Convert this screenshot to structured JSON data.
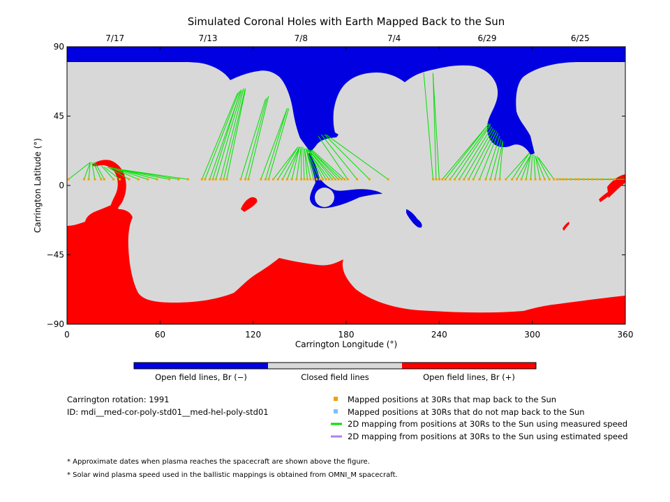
{
  "chart_data": {
    "type": "map",
    "title": "Simulated Coronal Holes with Earth Mapped Back to the Sun",
    "xlabel": "Carrington Longitude (°)",
    "ylabel": "Carrington Latitude (°)",
    "xlim": [
      0,
      360
    ],
    "ylim": [
      -90,
      90
    ],
    "x_ticks": [
      "0",
      "60",
      "120",
      "180",
      "240",
      "300",
      "360"
    ],
    "y_ticks": [
      "90",
      "45",
      "0",
      "−45",
      "−90"
    ],
    "top_dates": [
      {
        "lon": 30,
        "label": "7/17"
      },
      {
        "lon": 90,
        "label": "7/13"
      },
      {
        "lon": 150,
        "label": "7/8"
      },
      {
        "lon": 210,
        "label": "7/4"
      },
      {
        "lon": 270,
        "label": "6/29"
      },
      {
        "lon": 330,
        "label": "6/25"
      }
    ],
    "colorbar": [
      {
        "label": "Open field lines, Br (−)",
        "color": "#0000e0"
      },
      {
        "label": "Closed field lines",
        "color": "#d8d8d8"
      },
      {
        "label": "Open field lines, Br (+)",
        "color": "#ff0000"
      }
    ],
    "colors": {
      "open_negative": "#0000e0",
      "closed": "#d8d8d8",
      "open_positive": "#ff0000",
      "mapped_point": "#f0a000",
      "unmapped_point": "#80c0f0",
      "measured_line": "#00e000",
      "estimated_line": "#b080f0"
    },
    "mapping_lines": [
      {
        "from": [
          1,
          4
        ],
        "to": [
          15,
          15
        ]
      },
      {
        "from": [
          11,
          4
        ],
        "to": [
          15,
          15
        ]
      },
      {
        "from": [
          14,
          4
        ],
        "to": [
          15,
          15
        ]
      },
      {
        "from": [
          18,
          4
        ],
        "to": [
          16,
          15
        ]
      },
      {
        "from": [
          22,
          4
        ],
        "to": [
          17,
          15
        ]
      },
      {
        "from": [
          24,
          4
        ],
        "to": [
          18,
          15
        ]
      },
      {
        "from": [
          30,
          4
        ],
        "to": [
          22,
          13
        ]
      },
      {
        "from": [
          34,
          4
        ],
        "to": [
          24,
          12
        ]
      },
      {
        "from": [
          40,
          4
        ],
        "to": [
          26,
          12
        ]
      },
      {
        "from": [
          46,
          4
        ],
        "to": [
          27,
          12
        ]
      },
      {
        "from": [
          52,
          4
        ],
        "to": [
          27,
          12
        ]
      },
      {
        "from": [
          58,
          4
        ],
        "to": [
          27,
          12
        ]
      },
      {
        "from": [
          66,
          4
        ],
        "to": [
          29,
          11
        ]
      },
      {
        "from": [
          72,
          4
        ],
        "to": [
          30,
          11
        ]
      },
      {
        "from": [
          78,
          4
        ],
        "to": [
          30,
          11
        ]
      },
      {
        "from": [
          87,
          4
        ],
        "to": [
          110,
          60
        ]
      },
      {
        "from": [
          89,
          4
        ],
        "to": [
          111,
          61
        ]
      },
      {
        "from": [
          92,
          4
        ],
        "to": [
          112,
          61
        ]
      },
      {
        "from": [
          94,
          4
        ],
        "to": [
          112,
          62
        ]
      },
      {
        "from": [
          96,
          4
        ],
        "to": [
          113,
          62
        ]
      },
      {
        "from": [
          99,
          4
        ],
        "to": [
          114,
          63
        ]
      },
      {
        "from": [
          101,
          4
        ],
        "to": [
          115,
          63
        ]
      },
      {
        "from": [
          103,
          4
        ],
        "to": [
          115,
          62
        ]
      },
      {
        "from": [
          112,
          4
        ],
        "to": [
          128,
          56
        ]
      },
      {
        "from": [
          115,
          4
        ],
        "to": [
          129,
          57
        ]
      },
      {
        "from": [
          117,
          4
        ],
        "to": [
          130,
          58
        ]
      },
      {
        "from": [
          125,
          4
        ],
        "to": [
          142,
          50
        ]
      },
      {
        "from": [
          128,
          4
        ],
        "to": [
          142,
          50
        ]
      },
      {
        "from": [
          130,
          4
        ],
        "to": [
          143,
          50
        ]
      },
      {
        "from": [
          133,
          4
        ],
        "to": [
          149,
          25
        ]
      },
      {
        "from": [
          136,
          4
        ],
        "to": [
          149,
          25
        ]
      },
      {
        "from": [
          139,
          4
        ],
        "to": [
          150,
          25
        ]
      },
      {
        "from": [
          142,
          4
        ],
        "to": [
          150,
          25
        ]
      },
      {
        "from": [
          145,
          4
        ],
        "to": [
          150,
          25
        ]
      },
      {
        "from": [
          148,
          4
        ],
        "to": [
          151,
          25
        ]
      },
      {
        "from": [
          151,
          4
        ],
        "to": [
          151,
          25
        ]
      },
      {
        "from": [
          153,
          4
        ],
        "to": [
          152,
          25
        ]
      },
      {
        "from": [
          155,
          4
        ],
        "to": [
          153,
          24
        ]
      },
      {
        "from": [
          157,
          4
        ],
        "to": [
          153,
          24
        ]
      },
      {
        "from": [
          159,
          4
        ],
        "to": [
          154,
          24
        ]
      },
      {
        "from": [
          161,
          4
        ],
        "to": [
          154,
          24
        ]
      },
      {
        "from": [
          163,
          4
        ],
        "to": [
          154,
          24
        ]
      },
      {
        "from": [
          165,
          4
        ],
        "to": [
          155,
          24
        ]
      },
      {
        "from": [
          167,
          4
        ],
        "to": [
          155,
          24
        ]
      },
      {
        "from": [
          169,
          4
        ],
        "to": [
          155,
          23
        ]
      },
      {
        "from": [
          171,
          4
        ],
        "to": [
          156,
          23
        ]
      },
      {
        "from": [
          173,
          4
        ],
        "to": [
          156,
          23
        ]
      },
      {
        "from": [
          175,
          4
        ],
        "to": [
          157,
          23
        ]
      },
      {
        "from": [
          177,
          4
        ],
        "to": [
          157,
          23
        ]
      },
      {
        "from": [
          179,
          4
        ],
        "to": [
          158,
          23
        ]
      },
      {
        "from": [
          181,
          4
        ],
        "to": [
          162,
          32
        ]
      },
      {
        "from": [
          187,
          4
        ],
        "to": [
          164,
          33
        ]
      },
      {
        "from": [
          195,
          4
        ],
        "to": [
          166,
          33
        ]
      },
      {
        "from": [
          207,
          4
        ],
        "to": [
          167,
          33
        ]
      },
      {
        "from": [
          236,
          4
        ],
        "to": [
          230,
          73
        ]
      },
      {
        "from": [
          238,
          4
        ],
        "to": [
          236,
          73
        ]
      },
      {
        "from": [
          240,
          4
        ],
        "to": [
          236,
          72
        ]
      },
      {
        "from": [
          242,
          4
        ],
        "to": [
          272,
          40
        ]
      },
      {
        "from": [
          244,
          4
        ],
        "to": [
          272,
          40
        ]
      },
      {
        "from": [
          247,
          4
        ],
        "to": [
          273,
          40
        ]
      },
      {
        "from": [
          250,
          4
        ],
        "to": [
          273,
          39
        ]
      },
      {
        "from": [
          253,
          4
        ],
        "to": [
          274,
          38
        ]
      },
      {
        "from": [
          256,
          4
        ],
        "to": [
          275,
          37
        ]
      },
      {
        "from": [
          259,
          4
        ],
        "to": [
          276,
          36
        ]
      },
      {
        "from": [
          262,
          4
        ],
        "to": [
          277,
          35
        ]
      },
      {
        "from": [
          266,
          4
        ],
        "to": [
          278,
          34
        ]
      },
      {
        "from": [
          270,
          4
        ],
        "to": [
          279,
          32
        ]
      },
      {
        "from": [
          273,
          4
        ],
        "to": [
          280,
          30
        ]
      },
      {
        "from": [
          276,
          4
        ],
        "to": [
          281,
          29
        ]
      },
      {
        "from": [
          279,
          4
        ],
        "to": [
          281,
          28
        ]
      },
      {
        "from": [
          283,
          4
        ],
        "to": [
          298,
          21
        ]
      },
      {
        "from": [
          287,
          4
        ],
        "to": [
          298,
          21
        ]
      },
      {
        "from": [
          290,
          4
        ],
        "to": [
          299,
          20
        ]
      },
      {
        "from": [
          293,
          4
        ],
        "to": [
          299,
          20
        ]
      },
      {
        "from": [
          296,
          4
        ],
        "to": [
          299,
          20
        ]
      },
      {
        "from": [
          299,
          4
        ],
        "to": [
          300,
          20
        ]
      },
      {
        "from": [
          302,
          4
        ],
        "to": [
          301,
          20
        ]
      },
      {
        "from": [
          305,
          4
        ],
        "to": [
          302,
          19
        ]
      },
      {
        "from": [
          308,
          4
        ],
        "to": [
          302,
          19
        ]
      },
      {
        "from": [
          311,
          4
        ],
        "to": [
          303,
          19
        ]
      },
      {
        "from": [
          314,
          4
        ],
        "to": [
          304,
          18
        ]
      },
      {
        "from": [
          316,
          4
        ],
        "to": [
          356,
          4
        ]
      },
      {
        "from": [
          318,
          4
        ],
        "to": [
          356,
          4
        ]
      },
      {
        "from": [
          320,
          4
        ],
        "to": [
          357,
          4
        ]
      },
      {
        "from": [
          322,
          4
        ],
        "to": [
          357,
          4
        ]
      },
      {
        "from": [
          325,
          4
        ],
        "to": [
          357,
          4
        ]
      },
      {
        "from": [
          328,
          4
        ],
        "to": [
          358,
          4
        ]
      },
      {
        "from": [
          330,
          4
        ],
        "to": [
          358,
          4
        ]
      },
      {
        "from": [
          333,
          4
        ],
        "to": [
          358,
          4
        ]
      },
      {
        "from": [
          336,
          4
        ],
        "to": [
          359,
          4
        ]
      },
      {
        "from": [
          339,
          4
        ],
        "to": [
          359,
          4
        ]
      },
      {
        "from": [
          342,
          4
        ],
        "to": [
          360,
          4
        ]
      },
      {
        "from": [
          345,
          4
        ],
        "to": [
          360,
          4
        ]
      },
      {
        "from": [
          350,
          4
        ],
        "to": [
          360,
          4
        ]
      },
      {
        "from": [
          353,
          4
        ],
        "to": [
          360,
          4
        ]
      }
    ],
    "mapped_points_lon": [
      1,
      11,
      14,
      18,
      22,
      24,
      30,
      34,
      40,
      46,
      52,
      58,
      66,
      72,
      78,
      87,
      89,
      92,
      94,
      96,
      99,
      101,
      103,
      112,
      115,
      117,
      125,
      128,
      130,
      133,
      136,
      139,
      142,
      145,
      148,
      151,
      153,
      155,
      157,
      159,
      161,
      163,
      165,
      167,
      169,
      171,
      173,
      175,
      177,
      179,
      181,
      187,
      195,
      207,
      236,
      238,
      240,
      242,
      244,
      247,
      250,
      253,
      256,
      259,
      262,
      266,
      270,
      273,
      276,
      279,
      283,
      287,
      290,
      293,
      296,
      299,
      302,
      305,
      308,
      311,
      314,
      316,
      318,
      320,
      322,
      325,
      328,
      330,
      333,
      336,
      339,
      342,
      345,
      350,
      353
    ],
    "mapped_points_lat": 4
  },
  "legend": {
    "items": [
      {
        "type": "square",
        "color": "#f0a000",
        "label": "Mapped positions at 30Rs that map back to the Sun"
      },
      {
        "type": "square",
        "color": "#80c0f0",
        "label": "Mapped positions at 30Rs that do not map back to the Sun"
      },
      {
        "type": "line",
        "color": "#00e000",
        "label": "2D mapping from positions at 30Rs to the Sun using measured speed"
      },
      {
        "type": "line",
        "color": "#b080f0",
        "label": "2D mapping from positions at 30Rs to the Sun using estimated speed"
      }
    ]
  },
  "info": {
    "rotation": "Carrington rotation: 1991",
    "id": "ID: mdi__med-cor-poly-std01__med-hel-poly-std01"
  },
  "notes": [
    "* Approximate dates when plasma reaches the spacecraft are shown above the figure.",
    "* Solar wind plasma speed used in the ballistic mappings is obtained from OMNI_M spacecraft."
  ]
}
